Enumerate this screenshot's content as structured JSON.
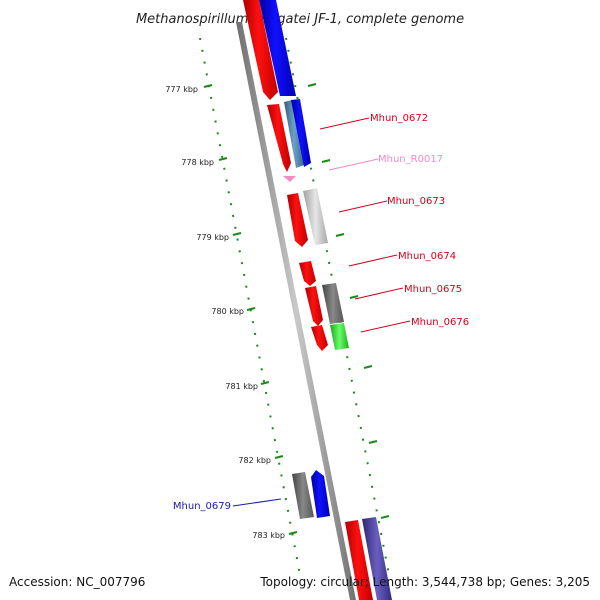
{
  "title": "Methanospirillum hungatei JF-1, complete genome",
  "footer": {
    "accession": "Accession: NC_007796",
    "summary": "Topology: circular; Length: 3,544,738 bp; Genes: 3,205"
  },
  "ticks": [
    "777 kbp",
    "778 kbp",
    "779 kbp",
    "780 kbp",
    "781 kbp",
    "782 kbp",
    "783 kbp"
  ],
  "gene_labels": [
    {
      "text": "Mhun_0672",
      "color": "#d0021b"
    },
    {
      "text": "Mhun_R0017",
      "color": "#f08cc0"
    },
    {
      "text": "Mhun_0673",
      "color": "#d0021b"
    },
    {
      "text": "Mhun_0674",
      "color": "#d0021b"
    },
    {
      "text": "Mhun_0675",
      "color": "#d0021b"
    },
    {
      "text": "Mhun_0676",
      "color": "#d0021b"
    },
    {
      "text": "Mhun_0679",
      "color": "#1a1aa6"
    }
  ],
  "colors": {
    "backbone": "#8c8c8c",
    "ticks": "#1a8a1a",
    "gene_red": "#ff0000",
    "gene_blue": "#0000ff",
    "gene_steel": "#4a7fa8",
    "gene_gray": "#666666",
    "gene_lightgray": "#bdbdbd",
    "gene_green": "#33cc33",
    "gene_purple": "#4a3f9a",
    "gene_pink": "#f08cc0"
  }
}
